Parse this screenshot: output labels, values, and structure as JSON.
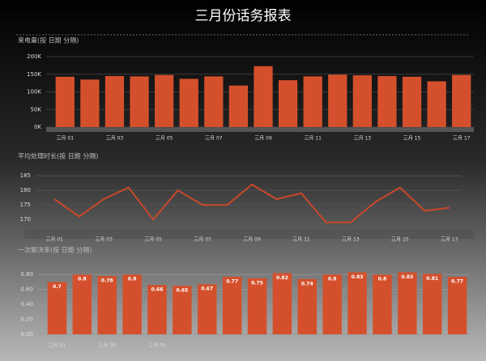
{
  "title": "三月份话务报表",
  "chart_data": [
    {
      "type": "bar",
      "title": "来电量(按 日期 分隔)",
      "categories": [
        "三月 01",
        null,
        "三月 03",
        null,
        "三月 05",
        null,
        "三月 07",
        null,
        "三月 09",
        null,
        "三月 11",
        null,
        "三月 13",
        null,
        "三月 15",
        null,
        "三月 17"
      ],
      "values": [
        143000,
        135000,
        145000,
        144000,
        148000,
        137000,
        144000,
        118000,
        173000,
        133000,
        144000,
        149000,
        147000,
        145000,
        143000,
        130000,
        148000
      ],
      "color": "#d4502c",
      "ylim": [
        0,
        200000
      ],
      "yticks": [
        {
          "value": 0,
          "label": "0K"
        },
        {
          "value": 50000,
          "label": "50K"
        },
        {
          "value": 100000,
          "label": "100K"
        },
        {
          "value": 150000,
          "label": "150K"
        },
        {
          "value": 200000,
          "label": "200K"
        }
      ],
      "grid": true
    },
    {
      "type": "line",
      "title": "平均处理时长(按 日期 分隔)",
      "categories": [
        "三月 01",
        null,
        "三月 03",
        null,
        "三月 05",
        null,
        "三月 07",
        null,
        "三月 09",
        null,
        "三月 11",
        null,
        "三月 13",
        null,
        "三月 15",
        null,
        "三月 17"
      ],
      "values": [
        177,
        171,
        177,
        181,
        170,
        180,
        175,
        175,
        182,
        177,
        179,
        169,
        169,
        176,
        181,
        173,
        174
      ],
      "color": "#c9482a",
      "ylim": [
        167,
        187
      ],
      "yticks": [
        170,
        175,
        180,
        185
      ],
      "grid": true
    },
    {
      "type": "bar",
      "title": "一次解决率(按 日期 分隔)",
      "categories": [
        "三月 01",
        null,
        "三月 03",
        null,
        "三月 05",
        null,
        null,
        null,
        null,
        null,
        null,
        null,
        null,
        null,
        null,
        null,
        null
      ],
      "values": [
        0.7,
        0.8,
        0.78,
        0.8,
        0.66,
        0.65,
        0.67,
        0.77,
        0.75,
        0.82,
        0.74,
        0.8,
        0.83,
        0.8,
        0.83,
        0.81,
        0.77
      ],
      "color": "#d4502c",
      "ylim": [
        0,
        0.9
      ],
      "yticks": [
        {
          "value": 0,
          "label": "0.00"
        },
        {
          "value": 0.2,
          "label": "0.20"
        },
        {
          "value": 0.4,
          "label": "0.40"
        },
        {
          "value": 0.6,
          "label": "0.60"
        },
        {
          "value": 0.8,
          "label": "0.80"
        }
      ],
      "grid": true,
      "data_labels": true
    }
  ]
}
